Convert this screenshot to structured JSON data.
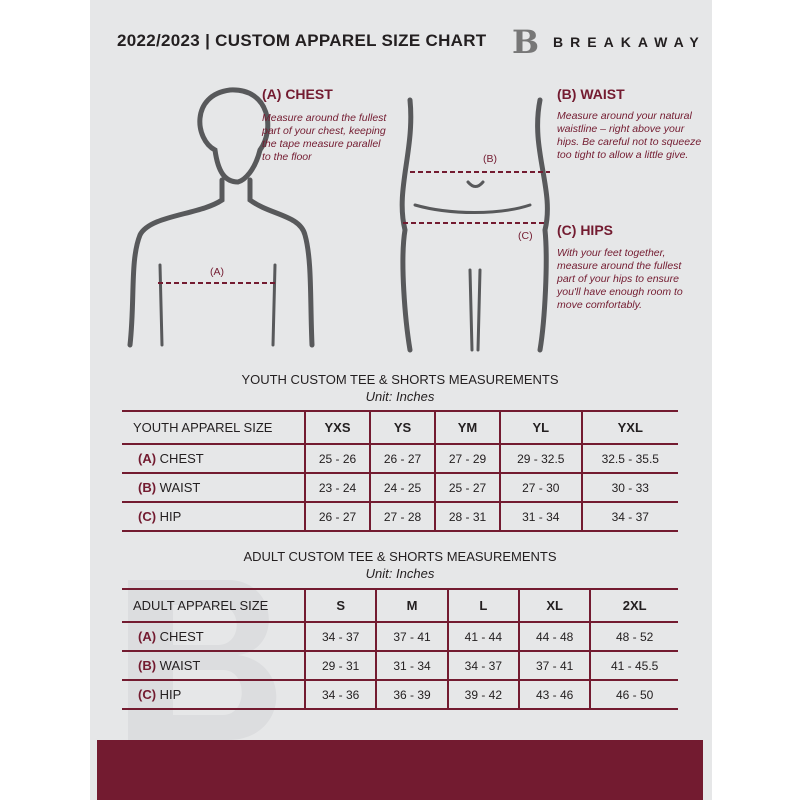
{
  "header": {
    "title": "2022/2023  |  CUSTOM APPAREL SIZE CHART",
    "logo_letter": "B",
    "brand": "BREAKAWAY"
  },
  "chest": {
    "heading": "(A) CHEST",
    "desc": "Measure around the fullest part of your chest, keeping the tape measure parallel to the floor",
    "marker": "(A)"
  },
  "waist": {
    "heading": "(B) WAIST",
    "desc": "Measure around your natural waistline – right above your hips. Be careful not to squeeze too tight to allow a little give.",
    "marker": "(B)"
  },
  "hips": {
    "heading": "(C) HIPS",
    "desc": "With your feet together, measure around the fullest part of your hips to ensure you'll have enough room to move comfortably.",
    "marker": "(C)"
  },
  "accent": "#731b30",
  "youth": {
    "title": "YOUTH CUSTOM TEE & SHORTS MEASUREMENTS",
    "unit": "Unit: Inches",
    "header": "YOUTH APPAREL SIZE",
    "sizes": [
      "YXS",
      "YS",
      "YM",
      "YL",
      "YXL"
    ],
    "rows": [
      {
        "letter": "(A)",
        "label": "CHEST",
        "values": [
          "25 - 26",
          "26 - 27",
          "27 - 29",
          "29 - 32.5",
          "32.5 - 35.5"
        ]
      },
      {
        "letter": "(B)",
        "label": "WAIST",
        "values": [
          "23 - 24",
          "24 - 25",
          "25 - 27",
          "27 - 30",
          "30 - 33"
        ]
      },
      {
        "letter": "(C)",
        "label": "HIP",
        "values": [
          "26 - 27",
          "27 - 28",
          "28 - 31",
          "31 - 34",
          "34 - 37"
        ]
      }
    ]
  },
  "adult": {
    "title": "ADULT CUSTOM TEE & SHORTS MEASUREMENTS",
    "unit": "Unit: Inches",
    "header": "ADULT APPAREL SIZE",
    "sizes": [
      "S",
      "M",
      "L",
      "XL",
      "2XL"
    ],
    "rows": [
      {
        "letter": "(A)",
        "label": "CHEST",
        "values": [
          "34 - 37",
          "37 - 41",
          "41 - 44",
          "44 - 48",
          "48 - 52"
        ]
      },
      {
        "letter": "(B)",
        "label": "WAIST",
        "values": [
          "29 - 31",
          "31 - 34",
          "34 - 37",
          "37 - 41",
          "41 - 45.5"
        ]
      },
      {
        "letter": "(C)",
        "label": "HIP",
        "values": [
          "34 - 36",
          "36 - 39",
          "39 - 42",
          "43 - 46",
          "46 - 50"
        ]
      }
    ]
  }
}
